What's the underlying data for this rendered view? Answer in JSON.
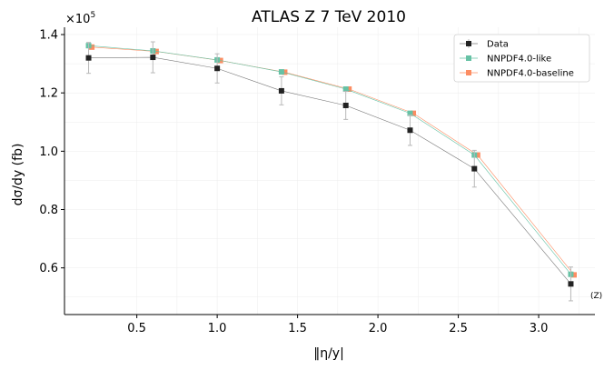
{
  "chart_data": {
    "type": "line",
    "title": "ATLAS Z 7 TeV 2010",
    "xlabel": "‖η/y|",
    "ylabel": "dσ/dy (fb)",
    "y_multiplier": "×10",
    "y_multiplier_exp": "5",
    "annotation": "(Z)",
    "xlim": [
      0.05,
      3.35
    ],
    "ylim": [
      0.44,
      1.425
    ],
    "x_ticks": [
      0.5,
      1.0,
      1.5,
      2.0,
      2.5,
      3.0
    ],
    "x_tick_labels": [
      "0.5",
      "1.0",
      "1.5",
      "2.0",
      "2.5",
      "3.0"
    ],
    "y_ticks": [
      0.6,
      0.8,
      1.0,
      1.2,
      1.4
    ],
    "y_tick_labels": [
      "0.6",
      "0.8",
      "1.0",
      "1.2",
      "1.4"
    ],
    "grid": true,
    "legend_position": "top-right",
    "x": [
      0.2,
      0.6,
      1.0,
      1.4,
      1.8,
      2.2,
      2.6,
      3.2
    ],
    "series": [
      {
        "name": "Data",
        "color": "#222222",
        "line_color": "#777777",
        "x_offset": 0,
        "values": [
          1.32,
          1.322,
          1.284,
          1.207,
          1.157,
          1.072,
          0.94,
          0.545
        ],
        "errors": [
          0.053,
          0.053,
          0.05,
          0.048,
          0.048,
          0.052,
          0.063,
          0.058
        ]
      },
      {
        "name": "NNPDF4.0-like",
        "color": "#66c2a5",
        "line_color": "#66c2a5",
        "x_offset": 0,
        "values": [
          1.362,
          1.344,
          1.313,
          1.272,
          1.213,
          1.13,
          0.987,
          0.578
        ]
      },
      {
        "name": "NNPDF4.0-baseline",
        "color": "#fc8d62",
        "line_color": "#fc8d62",
        "x_offset": 0.02,
        "values": [
          1.357,
          1.342,
          1.311,
          1.271,
          1.213,
          1.13,
          0.987,
          0.576
        ]
      }
    ]
  }
}
